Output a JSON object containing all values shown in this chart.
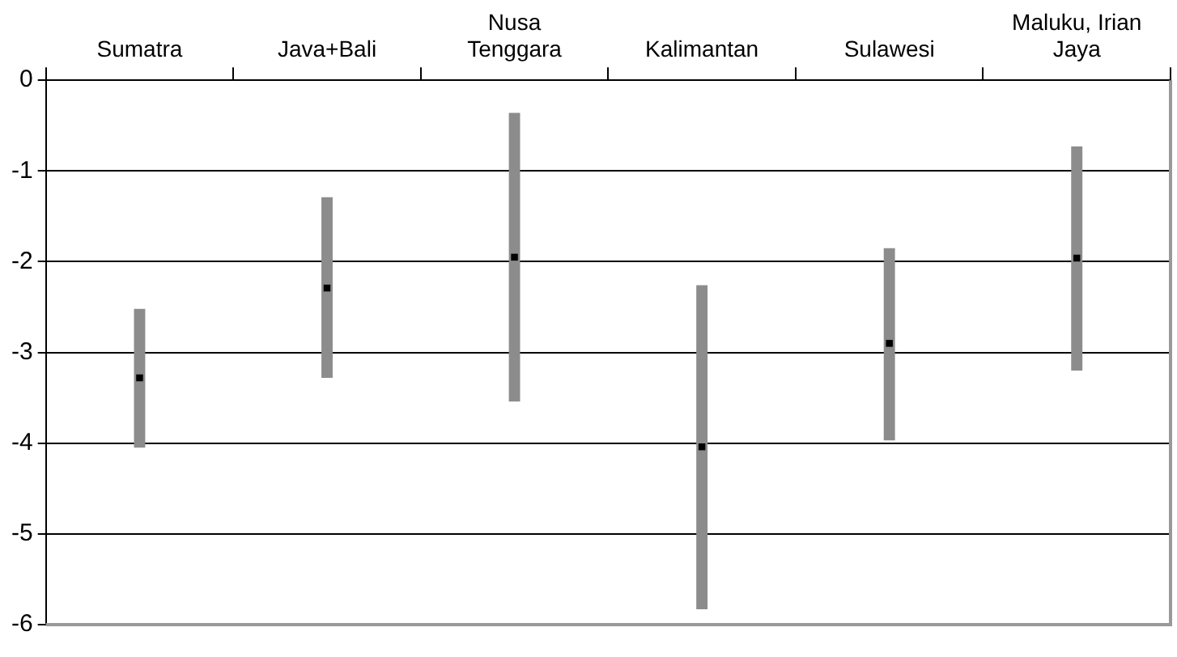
{
  "chart_data": {
    "type": "bar",
    "categories": [
      "Sumatra",
      "Java+Bali",
      "Nusa Tenggara",
      "Kalimantan",
      "Sulawesi",
      "Maluku, Irian Jaya"
    ],
    "series": [
      {
        "color": "#8c8c8c",
        "base": [
          -4.05,
          -3.28,
          -3.54,
          -5.83,
          -3.97,
          -3.2
        ],
        "values": [
          1.53,
          1.99,
          3.18,
          3.57,
          2.12,
          2.47
        ]
      },
      {
        "type": "scatter",
        "color": "#000000",
        "marker": "square",
        "values": [
          -3.28,
          -2.29,
          -1.95,
          -4.04,
          -2.9,
          -1.96
        ]
      }
    ],
    "ylim": [
      -6,
      0
    ],
    "yticks": [
      -6,
      -5,
      -4,
      -3,
      -2,
      -1,
      0
    ],
    "grid": "y",
    "legend": false
  }
}
